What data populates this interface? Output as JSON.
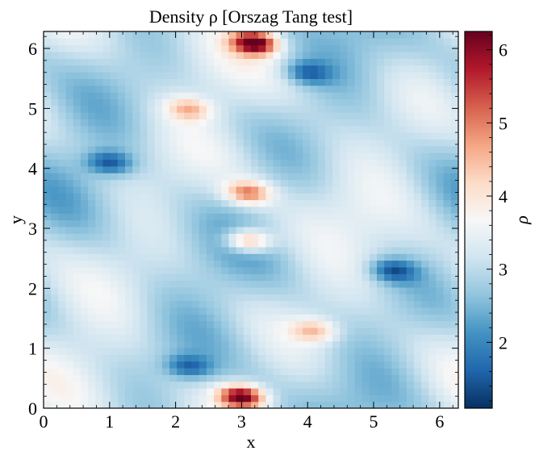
{
  "chart_data": {
    "type": "heatmap",
    "title": "Density ρ [Orszag Tang test]",
    "xlabel": "x",
    "ylabel": "y",
    "colorbar_label": "ρ",
    "xlim": [
      0,
      6.2832
    ],
    "ylim": [
      0,
      6.2832
    ],
    "x_ticks": [
      0,
      1,
      2,
      3,
      4,
      5,
      6
    ],
    "y_ticks": [
      0,
      1,
      2,
      3,
      4,
      5,
      6
    ],
    "colorbar_range": [
      1.1,
      6.25
    ],
    "colorbar_ticks": [
      2,
      3,
      4,
      5,
      6
    ],
    "colormap": "RdBu_r",
    "colormap_stops": [
      "#053061",
      "#2166ac",
      "#4393c3",
      "#92c5de",
      "#d1e5f0",
      "#f7f7f7",
      "#fddbc7",
      "#f4a582",
      "#d6604d",
      "#b2182b",
      "#67001f"
    ],
    "grid": false,
    "features": [
      {
        "x": 3.2,
        "y": 6.1,
        "value": 6.2
      },
      {
        "x": 3.0,
        "y": 0.2,
        "value": 6.2
      },
      {
        "x": 3.1,
        "y": 3.6,
        "value": 4.9
      },
      {
        "x": 3.1,
        "y": 2.8,
        "value": 4.9
      },
      {
        "x": 2.2,
        "y": 5.0,
        "value": 4.3
      },
      {
        "x": 4.1,
        "y": 1.3,
        "value": 4.3
      },
      {
        "x": 1.0,
        "y": 4.1,
        "value": 1.6
      },
      {
        "x": 5.3,
        "y": 2.3,
        "value": 1.6
      },
      {
        "x": 4.0,
        "y": 5.6,
        "value": 1.8
      },
      {
        "x": 2.2,
        "y": 0.7,
        "value": 1.8
      }
    ]
  }
}
